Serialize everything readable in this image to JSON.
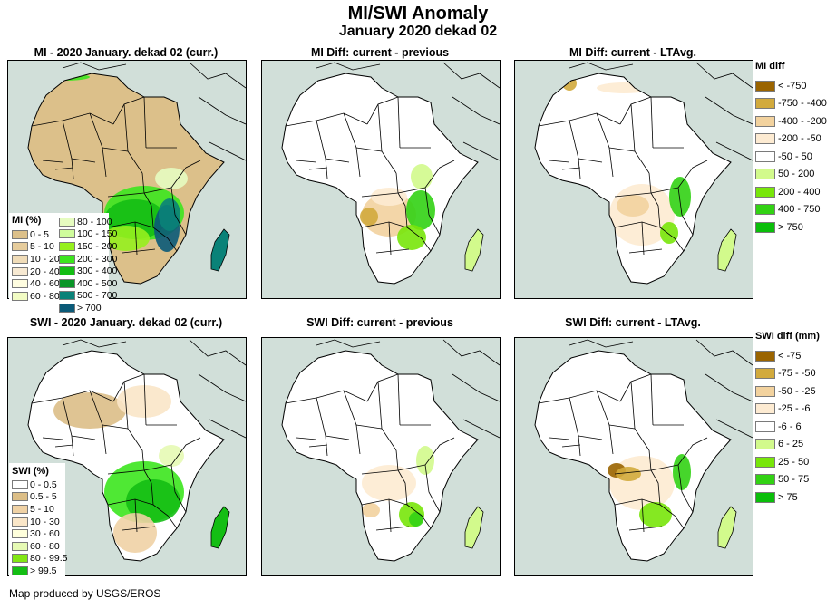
{
  "header": {
    "title": "MI/SWI Anomaly",
    "subtitle": "January 2020 dekad 02"
  },
  "panels": [
    {
      "id": "mi-current",
      "title": "MI - 2020 January. dekad 02 (curr.)",
      "variable": "MI",
      "scheme": "mi"
    },
    {
      "id": "mi-diff-previous",
      "title": "MI Diff: current - previous",
      "variable": "MI",
      "scheme": "midiff-prev"
    },
    {
      "id": "mi-diff-ltavg",
      "title": "MI Diff: current - LTAvg.",
      "variable": "MI",
      "scheme": "midiff-lt"
    },
    {
      "id": "swi-current",
      "title": "SWI - 2020 January. dekad 02 (curr.)",
      "variable": "SWI",
      "scheme": "swi"
    },
    {
      "id": "swi-diff-previous",
      "title": "SWI Diff: current - previous",
      "variable": "SWI",
      "scheme": "swidiff-prev"
    },
    {
      "id": "swi-diff-ltavg",
      "title": "SWI Diff: current - LTAvg.",
      "variable": "SWI",
      "scheme": "swidiff-lt"
    }
  ],
  "legends": {
    "mi": {
      "title": "MI (%)",
      "items": [
        {
          "label": "0 - 5",
          "color": "#dcc08a"
        },
        {
          "label": "5 - 10",
          "color": "#e6cc9c"
        },
        {
          "label": "10 - 20",
          "color": "#f0dcb8"
        },
        {
          "label": "20 - 40",
          "color": "#f7e9d2"
        },
        {
          "label": "40 - 60",
          "color": "#fffde0"
        },
        {
          "label": "60 - 80",
          "color": "#f2fcc4"
        },
        {
          "label": "80 - 100",
          "color": "#e6fcc0"
        },
        {
          "label": "100 - 150",
          "color": "#cffc9c"
        },
        {
          "label": "150 - 200",
          "color": "#96f01e"
        },
        {
          "label": "200 - 300",
          "color": "#3ce61e"
        },
        {
          "label": "300 - 400",
          "color": "#14be14"
        },
        {
          "label": "400 - 500",
          "color": "#0a9628"
        },
        {
          "label": "500 - 700",
          "color": "#0a8278"
        },
        {
          "label": "> 700",
          "color": "#0a5a78"
        }
      ]
    },
    "swi": {
      "title": "SWI (%)",
      "items": [
        {
          "label": "0 - 0.5",
          "color": "#ffffff"
        },
        {
          "label": "0.5 - 5",
          "color": "#dcbe87"
        },
        {
          "label": "5 - 10",
          "color": "#f0d2a5"
        },
        {
          "label": "10 - 30",
          "color": "#fae6c8"
        },
        {
          "label": "30 - 60",
          "color": "#ffffdc"
        },
        {
          "label": "60 - 80",
          "color": "#e6fab4"
        },
        {
          "label": "80 - 99.5",
          "color": "#82e614"
        },
        {
          "label": "> 99.5",
          "color": "#14be14"
        }
      ]
    },
    "mi_diff": {
      "title": "MI diff",
      "items": [
        {
          "label": "< -750",
          "color": "#9a6400"
        },
        {
          "label": "-750 - -400",
          "color": "#d2aa3c"
        },
        {
          "label": "-400 - -200",
          "color": "#f2d29e"
        },
        {
          "label": "-200 - -50",
          "color": "#fdebd2"
        },
        {
          "label": "-50 - 50",
          "color": "#ffffff"
        },
        {
          "label": "50 - 200",
          "color": "#d2fa8c"
        },
        {
          "label": "200 - 400",
          "color": "#78e60a"
        },
        {
          "label": "400 - 750",
          "color": "#32d214"
        },
        {
          "label": "> 750",
          "color": "#0abe0a"
        }
      ]
    },
    "swi_diff": {
      "title": "SWI diff (mm)",
      "items": [
        {
          "label": "< -75",
          "color": "#9a6400"
        },
        {
          "label": "-75 - -50",
          "color": "#d2aa3c"
        },
        {
          "label": "-50 - -25",
          "color": "#f2d29e"
        },
        {
          "label": "-25 - -6",
          "color": "#fdebd2"
        },
        {
          "label": "-6 - 6",
          "color": "#ffffff"
        },
        {
          "label": "6 - 25",
          "color": "#d2fa8c"
        },
        {
          "label": "25 - 50",
          "color": "#78e60a"
        },
        {
          "label": "50 - 75",
          "color": "#32d214"
        },
        {
          "label": "> 75",
          "color": "#0abe0a"
        }
      ]
    }
  },
  "colors": {
    "ocean": "#d1dfd9",
    "nodata": "#d1dfd9",
    "border": "#000000"
  },
  "footer": {
    "credit": "Map produced by USGS/EROS"
  }
}
